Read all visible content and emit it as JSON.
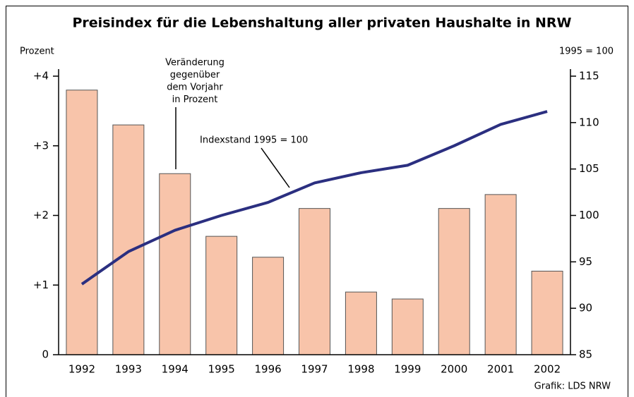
{
  "chart_data": {
    "type": "bar_line",
    "title": "Preisindex für die Lebenshaltung aller privaten Haushalte in NRW",
    "y_label": "Prozent",
    "y2_label": "1995 = 100",
    "source": "Grafik: LDS NRW",
    "categories": [
      "1992",
      "1993",
      "1994",
      "1995",
      "1996",
      "1997",
      "1998",
      "1999",
      "2000",
      "2001",
      "2002"
    ],
    "series": [
      {
        "type": "bar",
        "color": "#f8c4aa",
        "axis": "y",
        "values": [
          3.8,
          3.3,
          2.6,
          1.7,
          1.4,
          2.1,
          0.9,
          0.8,
          2.1,
          2.3,
          1.2
        ]
      },
      {
        "type": "line",
        "color": "#2b2f80",
        "axis": "y2",
        "values": [
          92.6,
          96.1,
          98.4,
          100,
          101.4,
          103.5,
          104.6,
          105.4,
          107.5,
          109.8,
          111.2
        ]
      }
    ],
    "ylim": [
      0,
      4
    ],
    "yticks": [
      0,
      {
        "value": 1,
        "label": "+1"
      },
      {
        "value": 2,
        "label": "+2"
      },
      {
        "value": 3,
        "label": "+3"
      },
      {
        "value": 4,
        "label": "+4"
      }
    ],
    "y2lim": [
      85,
      115
    ],
    "y2ticks": [
      85,
      90,
      95,
      100,
      105,
      110,
      115
    ],
    "annotations": [
      {
        "lines": [
          "Veränderung",
          "gegenüber",
          "dem Vorjahr",
          "in Prozent"
        ]
      },
      {
        "lines": [
          "Indexstand 1995 = 100"
        ]
      }
    ]
  }
}
